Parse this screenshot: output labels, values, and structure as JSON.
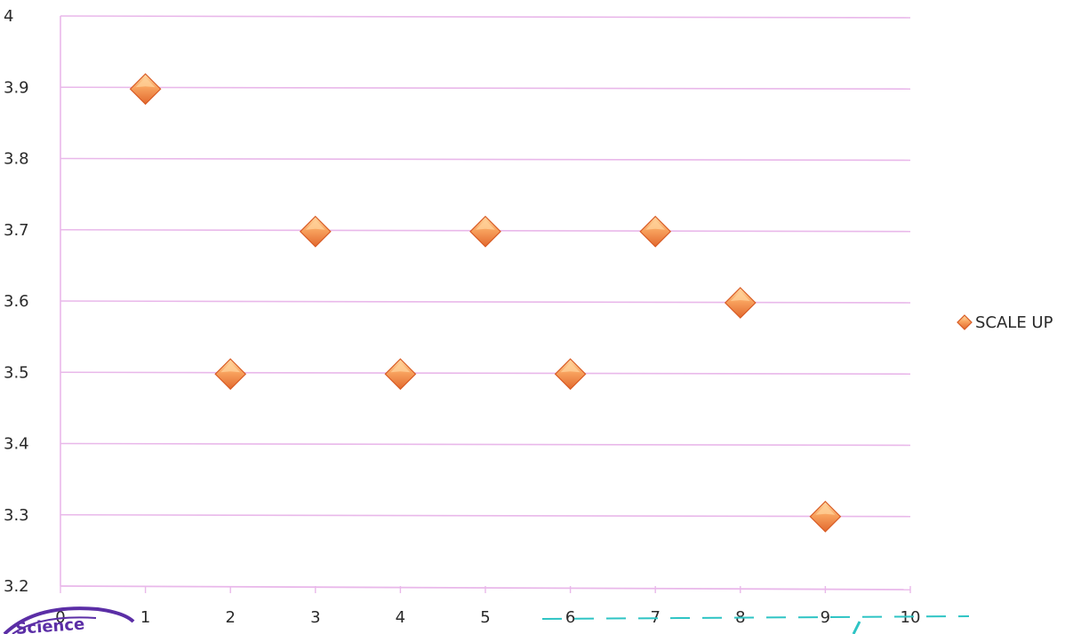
{
  "chart_data": {
    "type": "scatter",
    "x": [
      1,
      2,
      3,
      4,
      5,
      6,
      7,
      8,
      9
    ],
    "series": [
      {
        "name": "SCALE UP",
        "values": [
          3.9,
          3.5,
          3.7,
          3.5,
          3.7,
          3.5,
          3.7,
          3.6,
          3.3
        ]
      }
    ],
    "xlim": [
      0,
      10
    ],
    "ylim": [
      3.2,
      4
    ],
    "x_ticks": [
      "0",
      "1",
      "2",
      "3",
      "4",
      "5",
      "6",
      "7",
      "8",
      "9",
      "10"
    ],
    "y_ticks": [
      "3.2",
      "3.3",
      "3.4",
      "3.5",
      "3.6",
      "3.7",
      "3.8",
      "3.9",
      "4"
    ],
    "grid": "horizontal",
    "legend_position": "right",
    "title": "",
    "xlabel": "",
    "ylabel": ""
  },
  "colors": {
    "marker": "#f4894a",
    "marker_light": "#ffd29a",
    "marker_dark": "#d85a23",
    "gridline": "#e9b8ea",
    "stamp": "#5b2ea6",
    "pen": "#2ec4c4"
  },
  "stamp": {
    "text": "Science"
  }
}
